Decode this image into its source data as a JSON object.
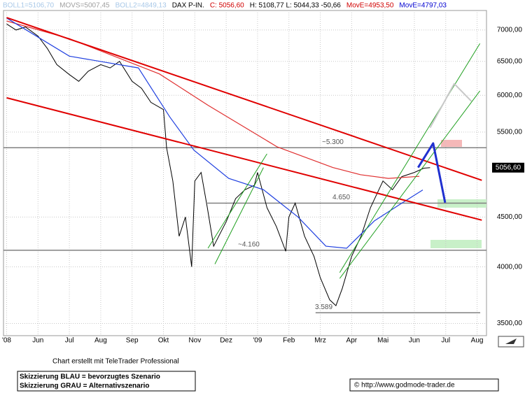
{
  "chart_data": {
    "type": "line",
    "header": [
      {
        "text": "BOLL1=5106,70",
        "color": "#a8c8e8"
      },
      {
        "text": "MOVS=5007,45",
        "color": "#a0a0a0"
      },
      {
        "text": "BOLL2=4849,13",
        "color": "#a8c8e8"
      },
      {
        "text": "DAX P-IN.",
        "color": "#000000"
      },
      {
        "text": "C: 5056,60",
        "color": "#d00000"
      },
      {
        "text": "H: 5108,77 L: 5044,33 -50,66",
        "color": "#000000"
      },
      {
        "text": "MovE=4953,50",
        "color": "#d00000"
      },
      {
        "text": "MovE=4797,03",
        "color": "#0000d0"
      }
    ],
    "log_scale": true,
    "grid": true,
    "xlim": [
      -0.1,
      15.3
    ],
    "xticks": [
      {
        "value": 0,
        "label": "'08"
      },
      {
        "value": 1,
        "label": "Jun"
      },
      {
        "value": 2,
        "label": "Jul"
      },
      {
        "value": 3,
        "label": "Aug"
      },
      {
        "value": 4,
        "label": "Sep"
      },
      {
        "value": 5,
        "label": "Okt"
      },
      {
        "value": 6,
        "label": "Nov"
      },
      {
        "value": 7,
        "label": "Dez"
      },
      {
        "value": 8,
        "label": "'09"
      },
      {
        "value": 9,
        "label": "Feb"
      },
      {
        "value": 10,
        "label": "Mrz"
      },
      {
        "value": 11,
        "label": "Apr"
      },
      {
        "value": 12,
        "label": "Mai"
      },
      {
        "value": 13,
        "label": "Jun"
      },
      {
        "value": 14,
        "label": "Jul"
      },
      {
        "value": 15,
        "label": "Aug"
      }
    ],
    "ylim": [
      3400,
      7330
    ],
    "yticks": [
      {
        "value": 3500,
        "label": "3500,00"
      },
      {
        "value": 4000,
        "label": "4000,00"
      },
      {
        "value": 4500,
        "label": "4500,00"
      },
      {
        "value": 5500,
        "label": "5500,00"
      },
      {
        "value": 6000,
        "label": "6000,00"
      },
      {
        "value": 6500,
        "label": "6500,00"
      },
      {
        "value": 7000,
        "label": "7000,00"
      }
    ],
    "series": [
      {
        "color": "#000000",
        "x": [
          0,
          0.3,
          0.6,
          1,
          1.3,
          1.6,
          2,
          2.3,
          2.6,
          3,
          3.3,
          3.6,
          4,
          4.3,
          4.6,
          5,
          5.1,
          5.3,
          5.5,
          5.7,
          5.9,
          6,
          6.2,
          6.4,
          6.6,
          7,
          7.3,
          7.6,
          7.9,
          8,
          8.3,
          8.6,
          8.9,
          9,
          9.2,
          9.5,
          9.8,
          10,
          10.3,
          10.5,
          10.7,
          11,
          11.3,
          11.6,
          12,
          12.3,
          12.6,
          13,
          13.3,
          13.5
        ],
        "values": [
          7100,
          7000,
          7050,
          6900,
          6700,
          6450,
          6300,
          6200,
          6350,
          6450,
          6400,
          6500,
          6200,
          6100,
          5900,
          5800,
          5300,
          4900,
          4300,
          4500,
          4000,
          4900,
          5000,
          4600,
          4200,
          4450,
          4700,
          4800,
          4850,
          5000,
          4600,
          4400,
          4150,
          4500,
          4650,
          4300,
          4100,
          3900,
          3700,
          3650,
          3800,
          4100,
          4300,
          4600,
          4900,
          4800,
          4950,
          5000,
          5050,
          5056.6
        ]
      },
      {
        "color": "#e03030",
        "x": [
          0,
          1.99,
          4.87,
          6.42,
          8.63,
          10.4,
          11.28,
          12.17,
          13.16
        ],
        "values": [
          7150,
          6860,
          6310,
          5860,
          5310,
          5058,
          4973,
          4930,
          4953.5
        ]
      },
      {
        "color": "#2040e0",
        "x": [
          0,
          2,
          4.2,
          5.2,
          5.97,
          7.08,
          8.19,
          9.29,
          10.18,
          10.84,
          11.73,
          12.6,
          13.27
        ],
        "values": [
          7200,
          6580,
          6400,
          5700,
          5270,
          4930,
          4800,
          4500,
          4200,
          4180,
          4460,
          4650,
          4797.03
        ]
      }
    ],
    "last_price": {
      "value": 5056.6,
      "label": "5056,60"
    },
    "levels": [
      {
        "value": 5300,
        "label": "~5.300",
        "x": [
          -0.1,
          15.3
        ]
      },
      {
        "value": 4650,
        "label": "4.650",
        "x": [
          6.4,
          15.3
        ]
      },
      {
        "value": 4160,
        "label": "~4.160",
        "x": [
          -0.1,
          15.3
        ]
      },
      {
        "value": 3589,
        "label": "3.589",
        "x": [
          9.85,
          15.1
        ]
      }
    ],
    "lines": [
      {
        "color": "#e00000",
        "width": 2,
        "x": [
          0,
          15.15
        ],
        "y": [
          7208,
          4908
        ]
      },
      {
        "color": "#e00000",
        "width": 2,
        "x": [
          0,
          15.15
        ],
        "y": [
          5963,
          4467
        ]
      },
      {
        "color": "#20a020",
        "width": 1,
        "x": [
          10.62,
          15.09
        ],
        "y": [
          3947,
          6780
        ]
      },
      {
        "color": "#20a020",
        "width": 1,
        "x": [
          10.62,
          15.09
        ],
        "y": [
          3892,
          6063
        ]
      },
      {
        "color": "#20a020",
        "width": 1,
        "x": [
          6.42,
          8.3
        ],
        "y": [
          4180,
          5224
        ]
      },
      {
        "color": "#20a020",
        "width": 1,
        "x": [
          6.64,
          8.19
        ],
        "y": [
          4027,
          5058
        ]
      },
      {
        "color": "#2030d0",
        "width": 3,
        "x": [
          13.12,
          13.6,
          13.98
        ],
        "y": [
          5058,
          5356,
          4655
        ]
      },
      {
        "color": "#c8c8c8",
        "width": 2,
        "x": [
          13.5,
          14.27,
          14.82
        ],
        "y": [
          5556,
          6166,
          5915
        ]
      }
    ],
    "footer": {
      "credit": "Chart erstellt mit TeleTrader Professional",
      "legend_blue": "Skizzierung BLAU = bevorzugtes Szenario",
      "legend_gray": "Skizzierung GRAU = Alternativszenario",
      "url": "© http://www.godmode-trader.de"
    }
  }
}
